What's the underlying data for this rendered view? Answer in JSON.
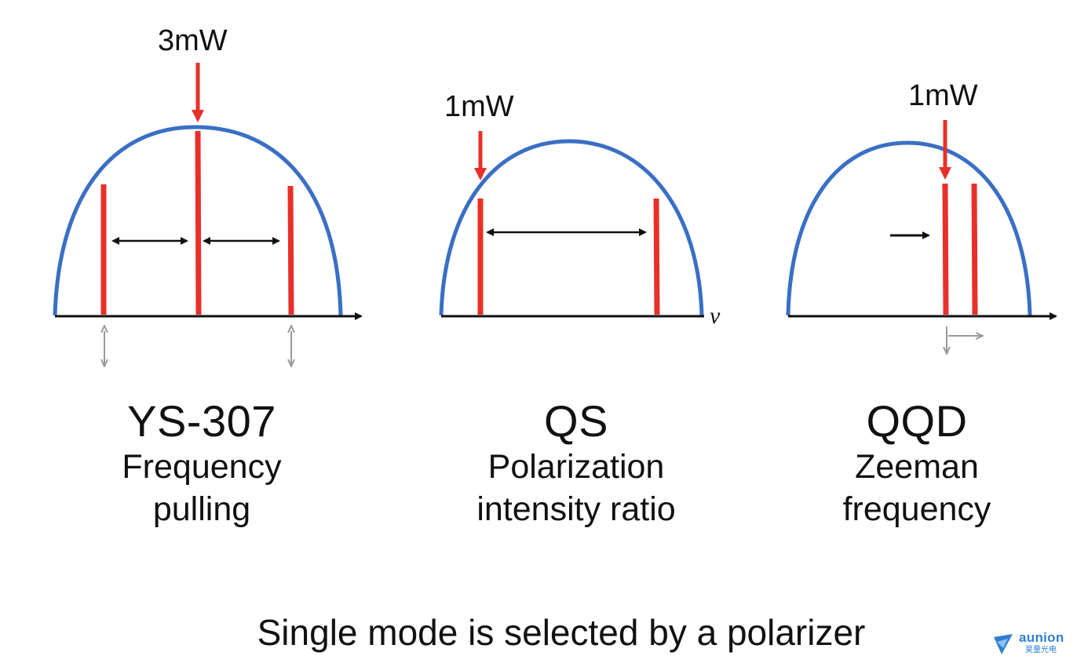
{
  "panels": [
    {
      "name": "YS-307",
      "description_line1": "Frequency",
      "description_line2": "pulling",
      "power_label": "3mW"
    },
    {
      "name": "QS",
      "description_line1": "Polarization",
      "description_line2": "intensity ratio",
      "power_label": "1mW",
      "axis_label": "ν"
    },
    {
      "name": "QQD",
      "description_line1": "Zeeman",
      "description_line2": "frequency",
      "power_label": "1mW"
    }
  ],
  "footer": "Single mode is selected by a polarizer",
  "logo": {
    "name": "aunion",
    "subtitle": "昊量光电"
  },
  "colors": {
    "gain_curve": "#3a6fc4",
    "mode_line": "#e8302a",
    "axis": "#111111",
    "arrow_black": "#111111",
    "arrow_gray": "#9a9a9a"
  }
}
